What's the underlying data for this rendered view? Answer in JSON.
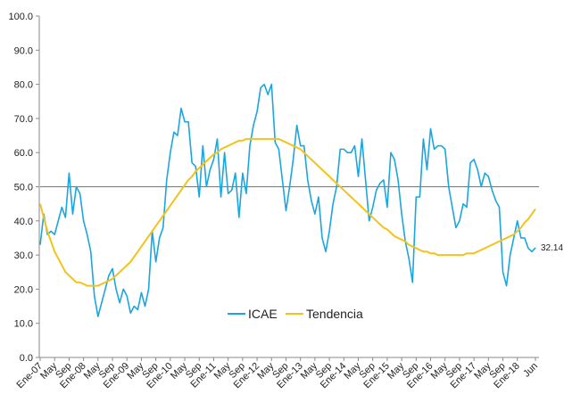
{
  "chart_data": {
    "type": "line",
    "categories": [
      "Ene-07",
      null,
      null,
      null,
      "May",
      null,
      null,
      null,
      "Sep",
      null,
      null,
      null,
      "Ene-08",
      null,
      null,
      null,
      "May",
      null,
      null,
      null,
      "Sep",
      null,
      null,
      null,
      "Ene-09",
      null,
      null,
      null,
      "May",
      null,
      null,
      null,
      "Sep",
      null,
      null,
      null,
      "Ene-10",
      null,
      null,
      null,
      "May",
      null,
      null,
      null,
      "Sep",
      null,
      null,
      null,
      "Ene-11",
      null,
      null,
      null,
      "May",
      null,
      null,
      null,
      "Sep",
      null,
      null,
      null,
      "Ene-12",
      null,
      null,
      null,
      "May",
      null,
      null,
      null,
      "Sep",
      null,
      null,
      null,
      "Ene-13",
      null,
      null,
      null,
      "May",
      null,
      null,
      null,
      "Sep",
      null,
      null,
      null,
      "Ene-14",
      null,
      null,
      null,
      "May",
      null,
      null,
      null,
      "Sep",
      null,
      null,
      null,
      "Ene-15",
      null,
      null,
      null,
      "May",
      null,
      null,
      null,
      "Sep",
      null,
      null,
      null,
      "Ene-16",
      null,
      null,
      null,
      "May",
      null,
      null,
      null,
      "Sep",
      null,
      null,
      null,
      "Ene-17",
      null,
      null,
      null,
      "May",
      null,
      null,
      null,
      "Sep",
      null,
      null,
      null,
      "Ene-18",
      null,
      null,
      null,
      null,
      "Jun"
    ],
    "series": [
      {
        "name": "ICAE",
        "color": "#1ba6df",
        "values": [
          33,
          42,
          36,
          37,
          36,
          40,
          44,
          41,
          54,
          42,
          50,
          48,
          40,
          36,
          31,
          18,
          12,
          16,
          20,
          24,
          26,
          20,
          16,
          20,
          18,
          13,
          15,
          14,
          19,
          15,
          20,
          37,
          28,
          35,
          38,
          52,
          60,
          66,
          65,
          73,
          69,
          69,
          57,
          56,
          47,
          62,
          50,
          55,
          58,
          64,
          47,
          60,
          48,
          49,
          54,
          41,
          54,
          48,
          62,
          68,
          72,
          79,
          80,
          77,
          80,
          63,
          61,
          52,
          43,
          50,
          58,
          68,
          62,
          62,
          52,
          46,
          42,
          47,
          35,
          31,
          37,
          45,
          50,
          61,
          61,
          60,
          60,
          62,
          53,
          64,
          52,
          40,
          44,
          49,
          51,
          52,
          44,
          60,
          58,
          52,
          42,
          34,
          29,
          22,
          47,
          47,
          64,
          55,
          67,
          61,
          62,
          62,
          61,
          50,
          44,
          38,
          40,
          45,
          44,
          57,
          58,
          55,
          50,
          54,
          53,
          49,
          46,
          44,
          25,
          21,
          30,
          35,
          40,
          35,
          35,
          32,
          31,
          32.14
        ]
      },
      {
        "name": "Tendencia",
        "color": "#f2c31a",
        "values": [
          45,
          41,
          37,
          34,
          31,
          29,
          27,
          25,
          24,
          23,
          22,
          22,
          21.5,
          21,
          21,
          21,
          21,
          21.5,
          22,
          22.5,
          23,
          24,
          25,
          26,
          27,
          28,
          29.5,
          31,
          32.5,
          34,
          35.5,
          37,
          38.5,
          40,
          41.5,
          43,
          44.5,
          46,
          47.5,
          49,
          50.5,
          52,
          53,
          54.5,
          55.5,
          56.5,
          57.5,
          58.5,
          59.5,
          60,
          61,
          61.5,
          62,
          62.5,
          63,
          63.5,
          63.5,
          64,
          64,
          64,
          64,
          64,
          64,
          64,
          64,
          64,
          64,
          63.5,
          63,
          62.5,
          62,
          61.5,
          61,
          60,
          59,
          58,
          57,
          56,
          55,
          54,
          53,
          52,
          51,
          50,
          49,
          48,
          47,
          46,
          45,
          44,
          43,
          42,
          41,
          40,
          39,
          38,
          37.5,
          36.5,
          35.5,
          35,
          34.5,
          34,
          33,
          32.5,
          32,
          31.5,
          31,
          31,
          30.5,
          30.5,
          30,
          30,
          30,
          30,
          30,
          30,
          30,
          30,
          30.5,
          30.5,
          30.5,
          31,
          31.5,
          32,
          32.5,
          33,
          33.5,
          34,
          34.5,
          35,
          35.5,
          36,
          37,
          38,
          39.5,
          40.5,
          42,
          43.5
        ]
      }
    ],
    "ylim": [
      0,
      100
    ],
    "yticks": [
      {
        "value": 0,
        "label": "0.0"
      },
      {
        "value": 10,
        "label": "10.0"
      },
      {
        "value": 20,
        "label": "20.0"
      },
      {
        "value": 30,
        "label": "30.0"
      },
      {
        "value": 40,
        "label": "40.0"
      },
      {
        "value": 50,
        "label": "50.0"
      },
      {
        "value": 60,
        "label": "60.0"
      },
      {
        "value": 70,
        "label": "70.0"
      },
      {
        "value": 80,
        "label": "80.0"
      },
      {
        "value": 90,
        "label": "90.0"
      },
      {
        "value": 100,
        "label": "100.0"
      }
    ],
    "reference_line": 50,
    "grid": false
  }
}
